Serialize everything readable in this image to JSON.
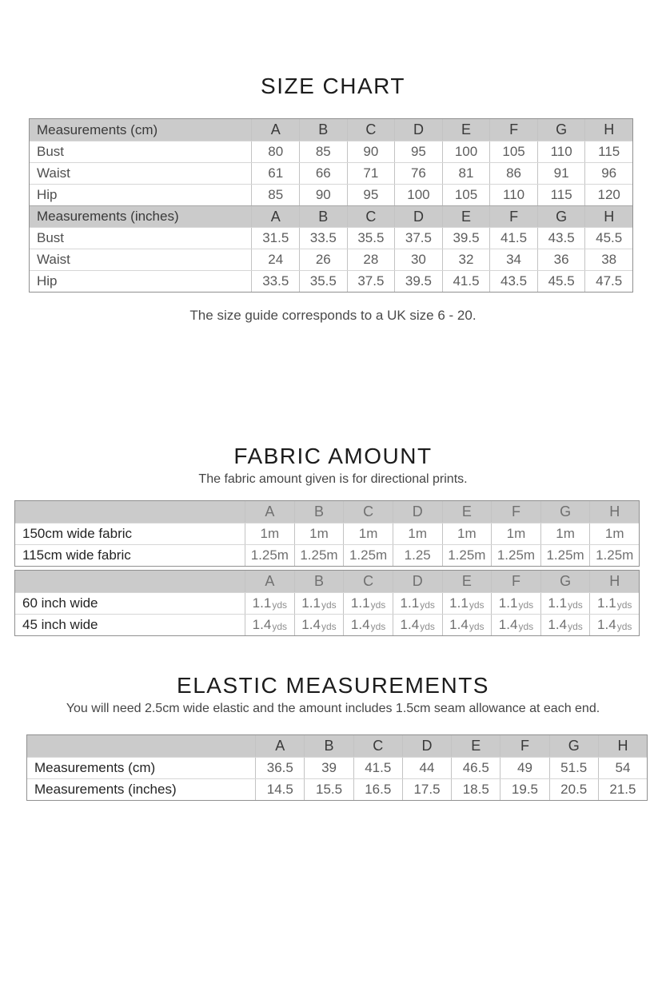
{
  "sizes": [
    "A",
    "B",
    "C",
    "D",
    "E",
    "F",
    "G",
    "H"
  ],
  "size_chart": {
    "title": "SIZE CHART",
    "caption": "The size guide corresponds to a UK size 6 - 20.",
    "table": {
      "rows": [
        {
          "type": "header",
          "label": "Measurements (cm)",
          "values": [
            "A",
            "B",
            "C",
            "D",
            "E",
            "F",
            "G",
            "H"
          ]
        },
        {
          "type": "data",
          "label": "Bust",
          "values": [
            "80",
            "85",
            "90",
            "95",
            "100",
            "105",
            "110",
            "115"
          ]
        },
        {
          "type": "data",
          "label": "Waist",
          "values": [
            "61",
            "66",
            "71",
            "76",
            "81",
            "86",
            "91",
            "96"
          ]
        },
        {
          "type": "data",
          "label": "Hip",
          "values": [
            "85",
            "90",
            "95",
            "100",
            "105",
            "110",
            "115",
            "120"
          ]
        },
        {
          "type": "header",
          "label": "Measurements (inches)",
          "values": [
            "A",
            "B",
            "C",
            "D",
            "E",
            "F",
            "G",
            "H"
          ]
        },
        {
          "type": "data",
          "label": "Bust",
          "values": [
            "31.5",
            "33.5",
            "35.5",
            "37.5",
            "39.5",
            "41.5",
            "43.5",
            "45.5"
          ]
        },
        {
          "type": "data",
          "label": "Waist",
          "values": [
            "24",
            "26",
            "28",
            "30",
            "32",
            "34",
            "36",
            "38"
          ]
        },
        {
          "type": "data",
          "label": "Hip",
          "values": [
            "33.5",
            "35.5",
            "37.5",
            "39.5",
            "41.5",
            "43.5",
            "45.5",
            "47.5"
          ]
        }
      ]
    }
  },
  "fabric_amount": {
    "title": "FABRIC AMOUNT",
    "subtitle": "The fabric amount given is for directional prints.",
    "metric_table": {
      "rows": [
        {
          "type": "header",
          "label": "",
          "values": [
            "A",
            "B",
            "C",
            "D",
            "E",
            "F",
            "G",
            "H"
          ]
        },
        {
          "type": "data",
          "label": "150cm wide fabric",
          "values": [
            "1m",
            "1m",
            "1m",
            "1m",
            "1m",
            "1m",
            "1m",
            "1m"
          ]
        },
        {
          "type": "data",
          "label": "115cm wide fabric",
          "values": [
            "1.25m",
            "1.25m",
            "1.25m",
            "1.25",
            "1.25m",
            "1.25m",
            "1.25m",
            "1.25m"
          ]
        }
      ]
    },
    "imperial_table": {
      "rows": [
        {
          "type": "header",
          "label": "",
          "values": [
            "A",
            "B",
            "C",
            "D",
            "E",
            "F",
            "G",
            "H"
          ]
        },
        {
          "type": "data",
          "label": "60 inch wide",
          "unit": "yds",
          "values": [
            "1.1",
            "1.1",
            "1.1",
            "1.1",
            "1.1",
            "1.1",
            "1.1",
            "1.1"
          ]
        },
        {
          "type": "data",
          "label": "45 inch wide",
          "unit": "yds",
          "values": [
            "1.4",
            "1.4",
            "1.4",
            "1.4",
            "1.4",
            "1.4",
            "1.4",
            "1.4"
          ]
        }
      ]
    }
  },
  "elastic": {
    "title": "ELASTIC MEASUREMENTS",
    "subtitle": "You will need 2.5cm wide elastic and the amount includes 1.5cm seam allowance at each end.",
    "table": {
      "rows": [
        {
          "type": "header",
          "label": "",
          "values": [
            "A",
            "B",
            "C",
            "D",
            "E",
            "F",
            "G",
            "H"
          ]
        },
        {
          "type": "data",
          "label": "Measurements (cm)",
          "values": [
            "36.5",
            "39",
            "41.5",
            "44",
            "46.5",
            "49",
            "51.5",
            "54"
          ]
        },
        {
          "type": "data",
          "label": "Measurements (inches)",
          "values": [
            "14.5",
            "15.5",
            "16.5",
            "17.5",
            "18.5",
            "19.5",
            "20.5",
            "21.5"
          ]
        }
      ]
    }
  },
  "colors": {
    "header_row_bg": "#cbcbcb",
    "table_border": "#909090",
    "text_dark": "#1c1c1c",
    "text_value": "#5d5d5d"
  }
}
